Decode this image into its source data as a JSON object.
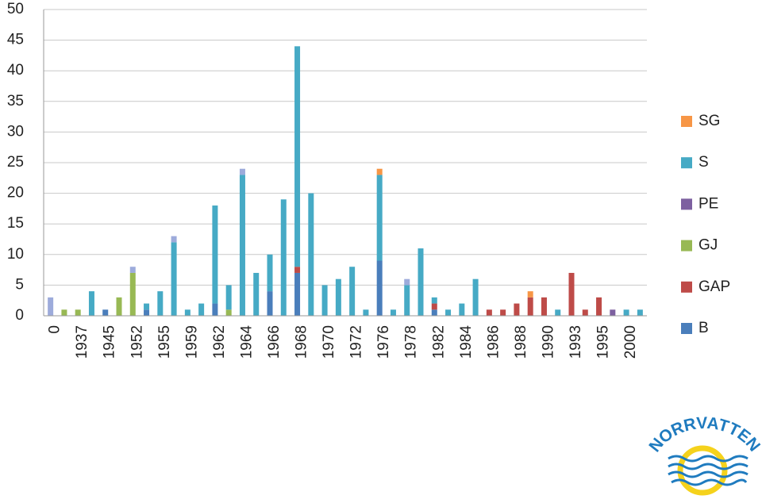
{
  "chart_data": {
    "type": "stacked_bar",
    "categories": [
      "0",
      null,
      "1937",
      null,
      "1945",
      null,
      "1952",
      null,
      "1955",
      null,
      "1959",
      null,
      "1962",
      null,
      "1964",
      null,
      "1966",
      null,
      "1968",
      null,
      "1970",
      null,
      "1972",
      null,
      "1976",
      null,
      "1978",
      null,
      "1982",
      null,
      "1984",
      null,
      "1986",
      null,
      "1988",
      null,
      "1990",
      null,
      "1993",
      null,
      "1995",
      null,
      "2000",
      null
    ],
    "series": [
      {
        "name": "B",
        "color": "#4a7ebb",
        "values": [
          0,
          0,
          0,
          0,
          1,
          0,
          0,
          1,
          0,
          0,
          0,
          0,
          2,
          0,
          0,
          0,
          4,
          0,
          7,
          0,
          0,
          0,
          0,
          0,
          9,
          0,
          0,
          0,
          1,
          0,
          0,
          0,
          0,
          0,
          0,
          0,
          0,
          0,
          0,
          0,
          0,
          0,
          0,
          0
        ]
      },
      {
        "name": "GAP",
        "color": "#be4b48",
        "values": [
          0,
          0,
          0,
          0,
          0,
          0,
          0,
          0,
          0,
          0,
          0,
          0,
          0,
          0,
          0,
          0,
          0,
          0,
          1,
          0,
          0,
          0,
          0,
          0,
          0,
          0,
          0,
          0,
          1,
          0,
          0,
          0,
          1,
          1,
          2,
          3,
          3,
          0,
          7,
          1,
          3,
          0,
          0,
          0
        ]
      },
      {
        "name": "GJ",
        "color": "#98b954",
        "values": [
          0,
          1,
          1,
          0,
          0,
          3,
          7,
          0,
          0,
          0,
          0,
          0,
          0,
          1,
          0,
          0,
          0,
          0,
          0,
          0,
          0,
          0,
          0,
          0,
          0,
          0,
          0,
          0,
          0,
          0,
          0,
          0,
          0,
          0,
          0,
          0,
          0,
          0,
          0,
          0,
          0,
          0,
          0,
          0
        ]
      },
      {
        "name": "PE",
        "color": "#7d60a0",
        "values": [
          0,
          0,
          0,
          0,
          0,
          0,
          0,
          0,
          0,
          0,
          0,
          0,
          0,
          0,
          0,
          0,
          0,
          0,
          0,
          0,
          0,
          0,
          0,
          0,
          0,
          0,
          0,
          0,
          0,
          0,
          0,
          0,
          0,
          0,
          0,
          0,
          0,
          0,
          0,
          0,
          0,
          1,
          0,
          0
        ]
      },
      {
        "name": "S",
        "color": "#46aac5",
        "values": [
          0,
          0,
          0,
          4,
          0,
          0,
          0,
          1,
          4,
          12,
          1,
          2,
          16,
          4,
          23,
          7,
          6,
          19,
          36,
          20,
          5,
          6,
          8,
          1,
          14,
          1,
          5,
          11,
          1,
          1,
          2,
          6,
          0,
          0,
          0,
          0,
          0,
          1,
          0,
          0,
          0,
          0,
          1,
          1
        ]
      },
      {
        "name": "SG",
        "color": "#f79646",
        "values": [
          0,
          0,
          0,
          0,
          0,
          0,
          0,
          0,
          0,
          0,
          0,
          0,
          0,
          0,
          0,
          0,
          0,
          0,
          0,
          0,
          0,
          0,
          0,
          0,
          1,
          0,
          0,
          0,
          0,
          0,
          0,
          0,
          0,
          0,
          0,
          1,
          0,
          0,
          0,
          0,
          0,
          0,
          0,
          0
        ]
      },
      {
        "color": "#9dabdb",
        "values": [
          3,
          0,
          0,
          0,
          0,
          0,
          1,
          0,
          0,
          1,
          0,
          0,
          0,
          0,
          1,
          0,
          0,
          0,
          0,
          0,
          0,
          0,
          0,
          0,
          0,
          0,
          1,
          0,
          0,
          0,
          0,
          0,
          0,
          0,
          0,
          0,
          0,
          0,
          0,
          0,
          0,
          0,
          0,
          0
        ]
      }
    ],
    "ylim": [
      0,
      50
    ],
    "yticks": [
      0,
      5,
      10,
      15,
      20,
      25,
      30,
      35,
      40,
      45,
      50
    ],
    "grid": true,
    "legend": "right"
  },
  "logo": {
    "text": "NORRVATTEN"
  }
}
